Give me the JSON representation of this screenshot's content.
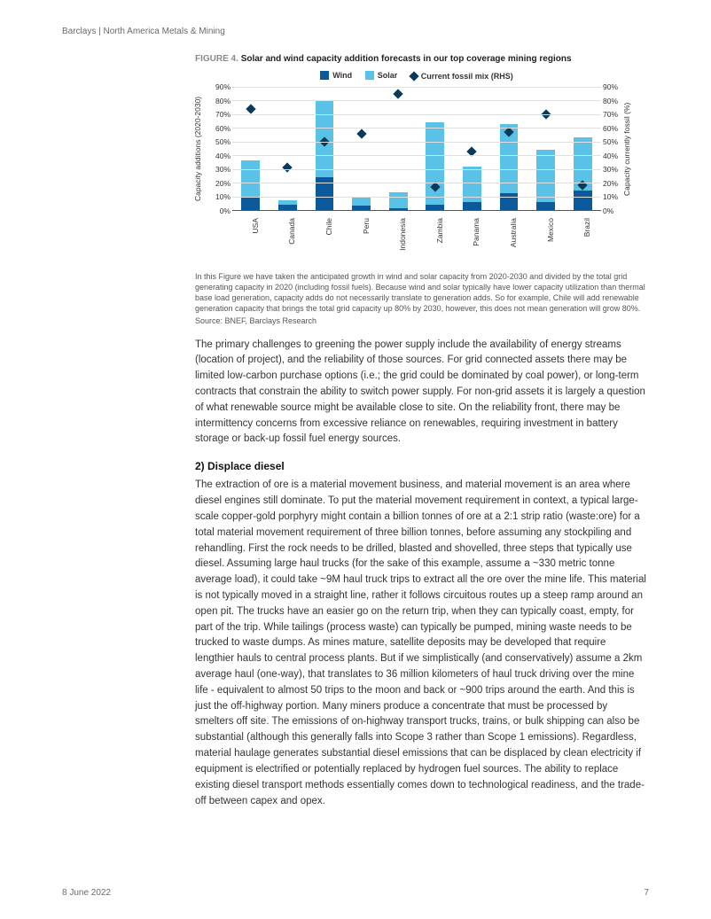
{
  "header": {
    "text": "Barclays | North America Metals & Mining"
  },
  "figure": {
    "label": "FIGURE 4.",
    "title": "Solar and wind capacity addition forecasts in our top coverage mining regions",
    "legend": {
      "wind": "Wind",
      "solar": "Solar",
      "fossil": "Current fossil mix (RHS)"
    },
    "colors": {
      "wind": "#0a5a9c",
      "solar": "#5bc2e7",
      "fossil": "#0a3a5a",
      "grid": "#e0e0e0",
      "axis": "#555555",
      "bg": "#ffffff"
    },
    "chart": {
      "type": "bar-stacked-with-secondary-scatter",
      "ylabel_left": "Capacity additions (2020-2030)",
      "ylabel_right": "Capacity currently fossil (%)",
      "ylim": [
        0,
        90
      ],
      "ytick_step": 10,
      "yticks": [
        "0%",
        "10%",
        "20%",
        "30%",
        "40%",
        "50%",
        "60%",
        "70%",
        "80%",
        "90%"
      ],
      "categories": [
        "USA",
        "Canada",
        "Chile",
        "Peru",
        "Indonesia",
        "Zambia",
        "Panama",
        "Australia",
        "Mexico",
        "Brazil"
      ],
      "wind": [
        10,
        4,
        24,
        3,
        1,
        4,
        6,
        12,
        6,
        14
      ],
      "solar": [
        26,
        3,
        56,
        7,
        12,
        60,
        26,
        51,
        38,
        39
      ],
      "fossil": [
        74,
        31,
        50,
        56,
        85,
        17,
        43,
        57,
        70,
        18
      ]
    },
    "note": "In this Figure we have taken the anticipated growth in wind and solar capacity from 2020-2030 and divided by the total grid generating capacity in 2020 (including fossil fuels). Because wind and solar typically have lower capacity utilization than thermal base load generation, capacity adds do not necessarily translate to generation adds. So for example, Chile will add renewable generation capacity that brings the total grid capacity up 80% by 2030, however, this does not mean generation will grow 80%.",
    "source": "Source: BNEF, Barclays Research"
  },
  "body": {
    "para1": "The primary challenges to greening the power supply include the availability of energy streams (location of project), and the reliability of those sources. For grid connected assets there may be limited low-carbon purchase options (i.e.; the grid could be dominated by coal power), or long-term contracts that constrain the ability to switch power supply. For non-grid assets it is largely a question of what renewable source might be available close to site. On the reliability front, there may be intermittency concerns from excessive reliance on renewables, requiring investment in battery storage or back-up fossil fuel energy sources.",
    "subhead": "2) Displace diesel",
    "para2": "The extraction of ore is a material movement business, and material movement is an area where diesel engines still dominate. To put the material movement requirement in context, a typical large-scale copper-gold porphyry might contain a billion tonnes of ore at a 2:1 strip ratio (waste:ore) for a total material movement requirement of three billion tonnes, before assuming any stockpiling and rehandling. First the rock needs to be drilled, blasted and shovelled, three steps that typically use diesel. Assuming large haul trucks (for the sake of this example, assume a ~330 metric tonne average load), it could take ~9M haul truck trips to extract all the ore over the mine life. This material is not typically moved in a straight line, rather it follows circuitous routes up a steep ramp around an open pit. The trucks have an easier go on the return trip, when they can typically coast, empty, for part of the trip. While tailings (process waste) can typically be pumped, mining waste needs to be trucked to waste dumps. As mines mature, satellite deposits may be developed that require lengthier hauls to central process plants. But if we simplistically (and conservatively) assume a 2km average haul (one-way), that translates to 36 million kilometers of haul truck driving over the mine life - equivalent to almost 50 trips to the moon and back or ~900 trips around the earth. And this is just the off-highway portion. Many miners produce a concentrate that must be processed by smelters off site. The emissions of on-highway transport trucks, trains, or bulk shipping can also be substantial (although this generally falls into Scope 3 rather than Scope 1 emissions). Regardless, material haulage generates substantial diesel emissions that can be displaced by clean electricity if equipment is electrified or potentially replaced by hydrogen fuel sources. The ability to replace existing diesel transport methods essentially comes down to technological readiness, and the trade-off between capex and opex."
  },
  "footer": {
    "date": "8 June 2022",
    "page": "7"
  }
}
